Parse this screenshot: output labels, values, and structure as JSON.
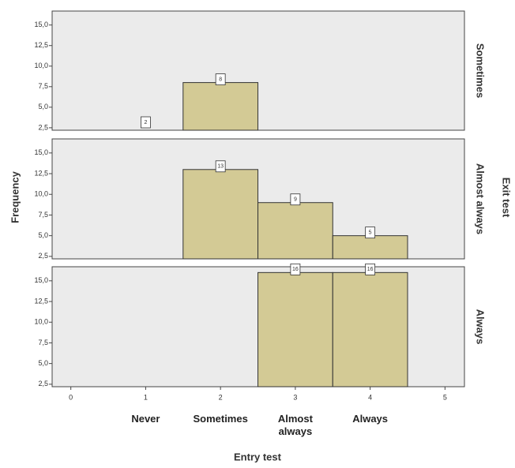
{
  "chart_data": {
    "type": "bar",
    "xlabel": "Entry test",
    "ylabel": "Frequency",
    "facet_label": "Exit test",
    "x": [
      1,
      2,
      3,
      4
    ],
    "categories": [
      "Never",
      "Sometimes",
      "Almost always",
      "Always"
    ],
    "xlim": [
      -0.25,
      5.26
    ],
    "xticks": [
      0,
      1,
      2,
      3,
      4,
      5
    ],
    "ylim": [
      2.2,
      16.7
    ],
    "yticks": [
      {
        "value": 2.5,
        "label": "2,5"
      },
      {
        "value": 5,
        "label": "5,0"
      },
      {
        "value": 7.5,
        "label": "7,5"
      },
      {
        "value": 10,
        "label": "10,0"
      },
      {
        "value": 12.5,
        "label": "12,5"
      },
      {
        "value": 15,
        "label": "15,0"
      }
    ],
    "color": "#d3ca95",
    "facets": [
      {
        "name": "Sometimes",
        "values": [
          2,
          8,
          null,
          null
        ]
      },
      {
        "name": "Almost always",
        "values": [
          null,
          13,
          9,
          5
        ]
      },
      {
        "name": "Always",
        "values": [
          null,
          null,
          16,
          16
        ]
      }
    ]
  }
}
